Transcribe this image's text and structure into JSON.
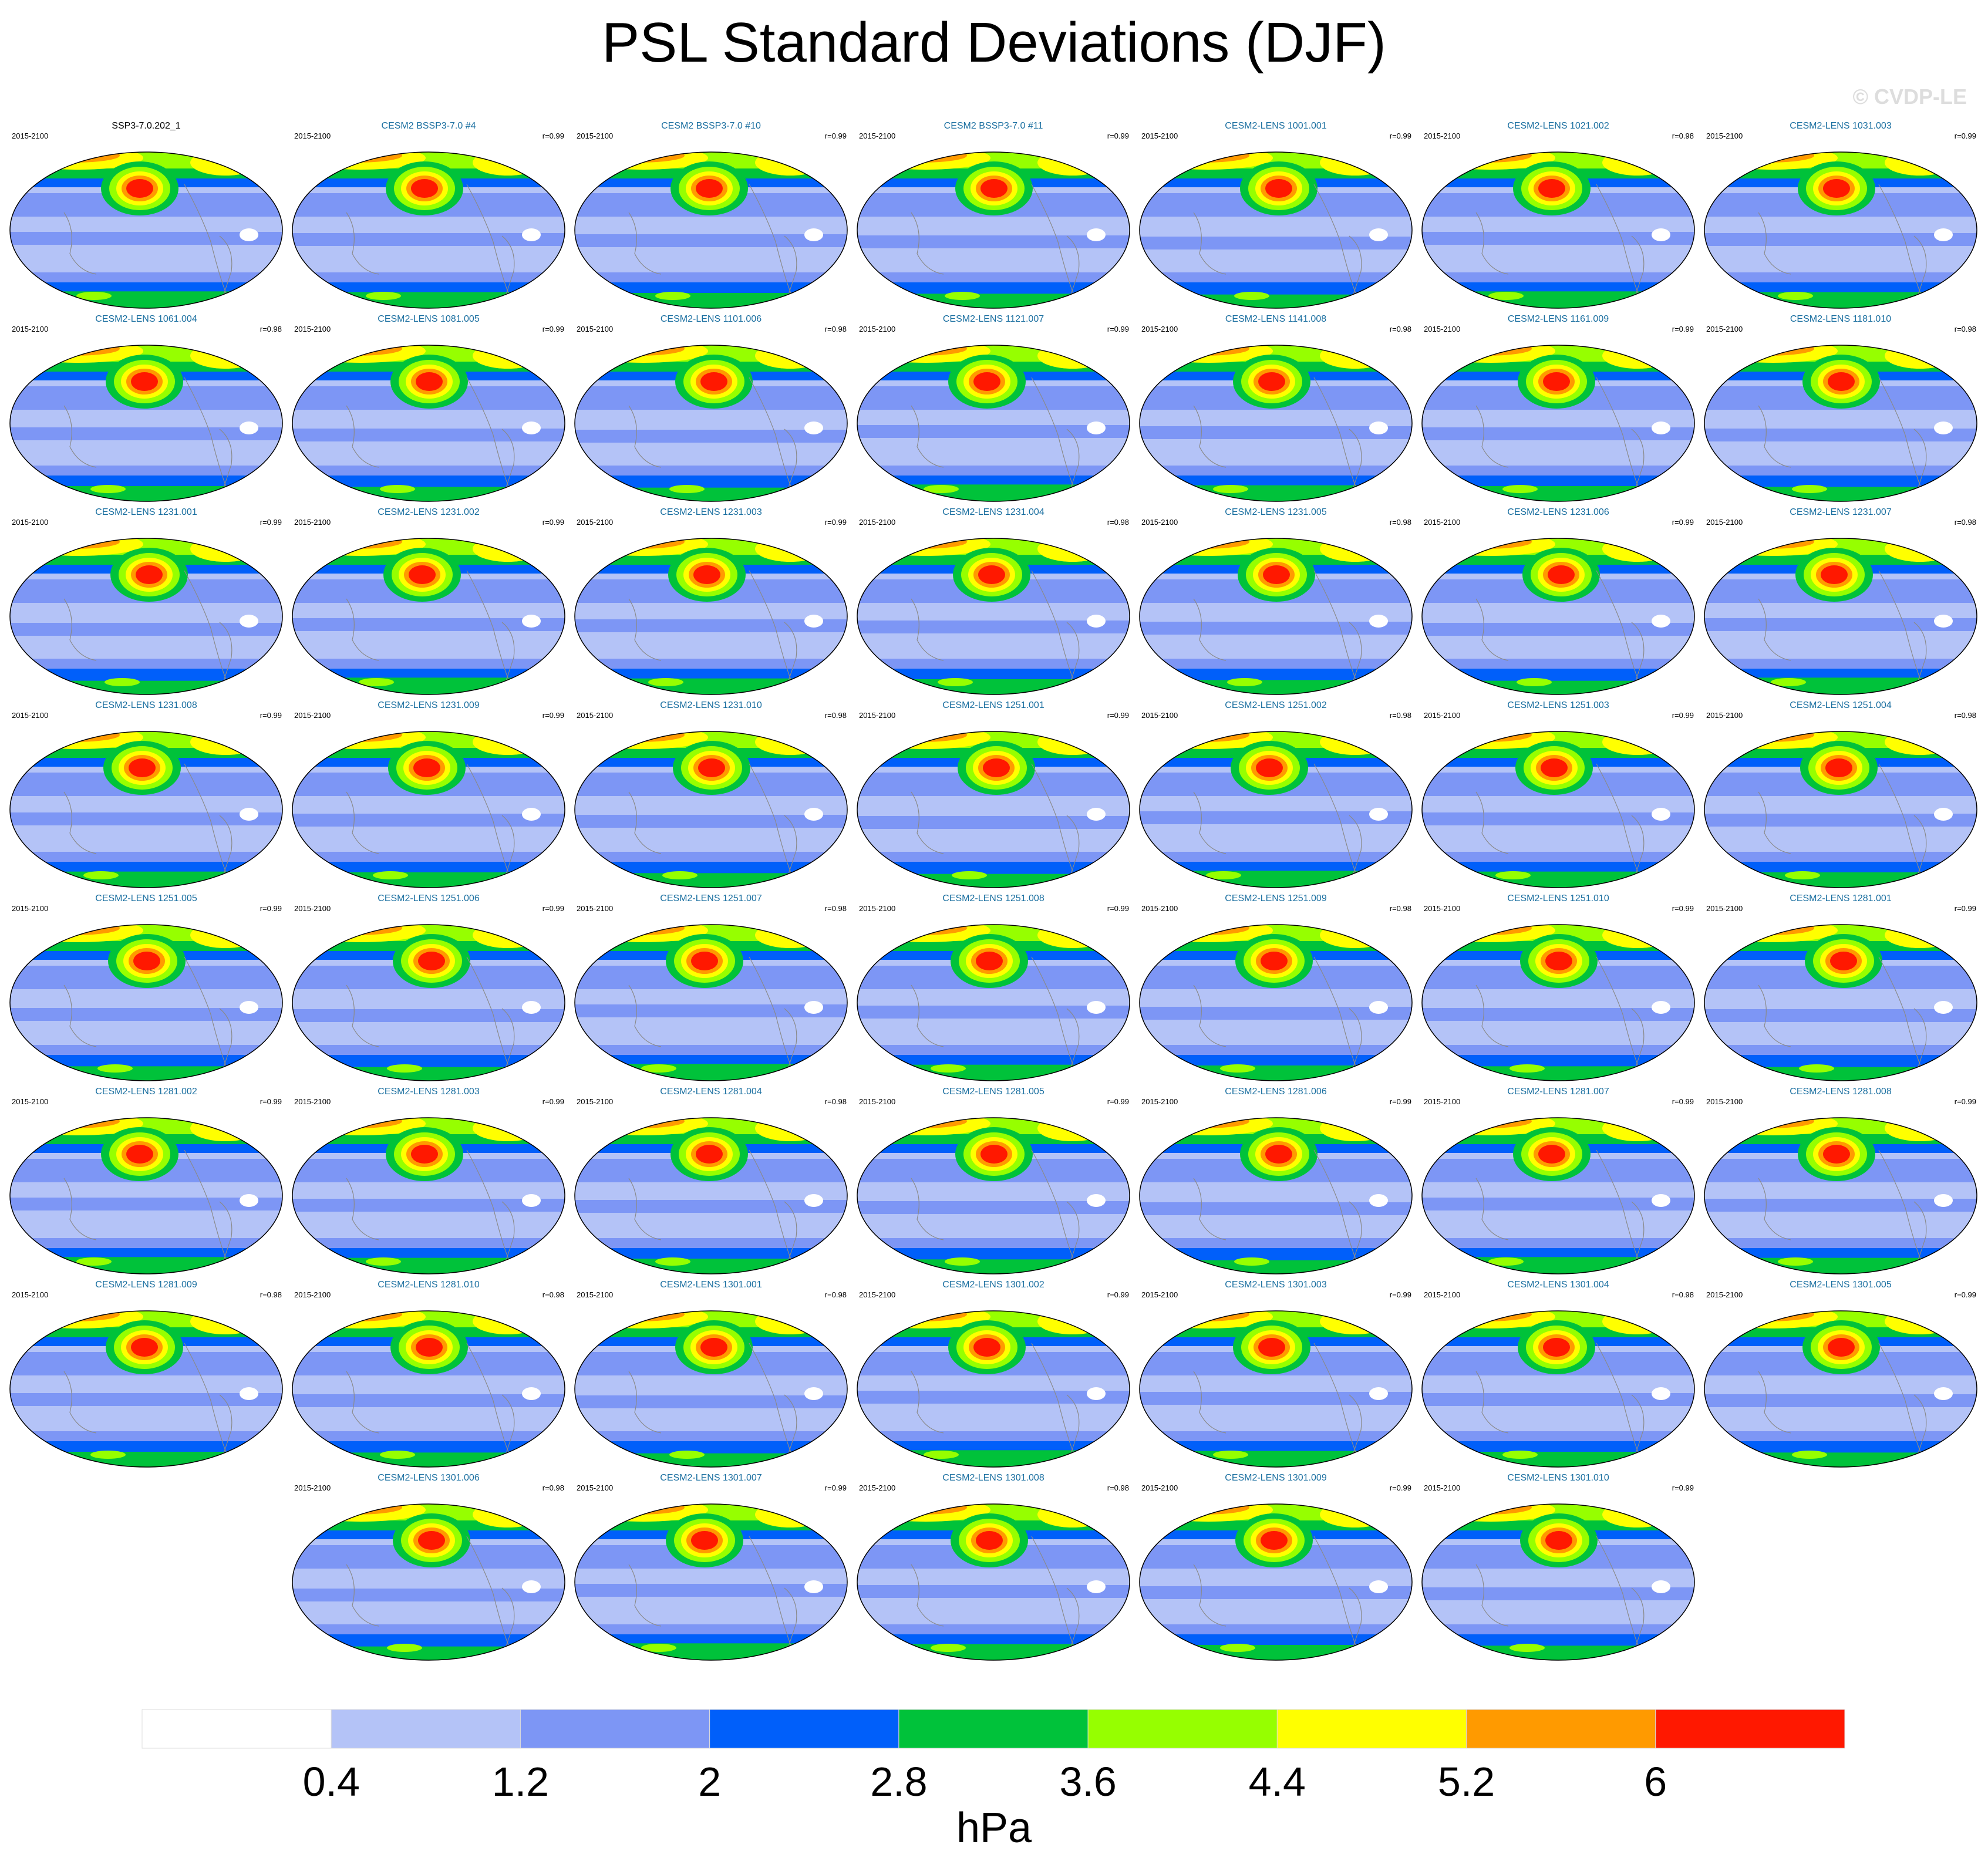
{
  "title": "PSL Standard Deviations (DJF)",
  "watermark": "© CVDP-LE",
  "panels": [
    {
      "title": "SSP3-7.0.202_1",
      "years": "2015-2100",
      "r": "",
      "obs": true
    },
    {
      "title": "CESM2 BSSP3-7.0 #4",
      "years": "2015-2100",
      "r": "r=0.99"
    },
    {
      "title": "CESM2 BSSP3-7.0 #10",
      "years": "2015-2100",
      "r": "r=0.99"
    },
    {
      "title": "CESM2 BSSP3-7.0 #11",
      "years": "2015-2100",
      "r": "r=0.99"
    },
    {
      "title": "CESM2-LENS 1001.001",
      "years": "2015-2100",
      "r": "r=0.99"
    },
    {
      "title": "CESM2-LENS 1021.002",
      "years": "2015-2100",
      "r": "r=0.98"
    },
    {
      "title": "CESM2-LENS 1031.003",
      "years": "2015-2100",
      "r": "r=0.99"
    },
    {
      "title": "CESM2-LENS 1061.004",
      "years": "2015-2100",
      "r": "r=0.98"
    },
    {
      "title": "CESM2-LENS 1081.005",
      "years": "2015-2100",
      "r": "r=0.99"
    },
    {
      "title": "CESM2-LENS 1101.006",
      "years": "2015-2100",
      "r": "r=0.98"
    },
    {
      "title": "CESM2-LENS 1121.007",
      "years": "2015-2100",
      "r": "r=0.99"
    },
    {
      "title": "CESM2-LENS 1141.008",
      "years": "2015-2100",
      "r": "r=0.98"
    },
    {
      "title": "CESM2-LENS 1161.009",
      "years": "2015-2100",
      "r": "r=0.99"
    },
    {
      "title": "CESM2-LENS 1181.010",
      "years": "2015-2100",
      "r": "r=0.98"
    },
    {
      "title": "CESM2-LENS 1231.001",
      "years": "2015-2100",
      "r": "r=0.99"
    },
    {
      "title": "CESM2-LENS 1231.002",
      "years": "2015-2100",
      "r": "r=0.99"
    },
    {
      "title": "CESM2-LENS 1231.003",
      "years": "2015-2100",
      "r": "r=0.99"
    },
    {
      "title": "CESM2-LENS 1231.004",
      "years": "2015-2100",
      "r": "r=0.98"
    },
    {
      "title": "CESM2-LENS 1231.005",
      "years": "2015-2100",
      "r": "r=0.98"
    },
    {
      "title": "CESM2-LENS 1231.006",
      "years": "2015-2100",
      "r": "r=0.99"
    },
    {
      "title": "CESM2-LENS 1231.007",
      "years": "2015-2100",
      "r": "r=0.98"
    },
    {
      "title": "CESM2-LENS 1231.008",
      "years": "2015-2100",
      "r": "r=0.99"
    },
    {
      "title": "CESM2-LENS 1231.009",
      "years": "2015-2100",
      "r": "r=0.99"
    },
    {
      "title": "CESM2-LENS 1231.010",
      "years": "2015-2100",
      "r": "r=0.98"
    },
    {
      "title": "CESM2-LENS 1251.001",
      "years": "2015-2100",
      "r": "r=0.99"
    },
    {
      "title": "CESM2-LENS 1251.002",
      "years": "2015-2100",
      "r": "r=0.98"
    },
    {
      "title": "CESM2-LENS 1251.003",
      "years": "2015-2100",
      "r": "r=0.99"
    },
    {
      "title": "CESM2-LENS 1251.004",
      "years": "2015-2100",
      "r": "r=0.98"
    },
    {
      "title": "CESM2-LENS 1251.005",
      "years": "2015-2100",
      "r": "r=0.99"
    },
    {
      "title": "CESM2-LENS 1251.006",
      "years": "2015-2100",
      "r": "r=0.99"
    },
    {
      "title": "CESM2-LENS 1251.007",
      "years": "2015-2100",
      "r": "r=0.98"
    },
    {
      "title": "CESM2-LENS 1251.008",
      "years": "2015-2100",
      "r": "r=0.99"
    },
    {
      "title": "CESM2-LENS 1251.009",
      "years": "2015-2100",
      "r": "r=0.98"
    },
    {
      "title": "CESM2-LENS 1251.010",
      "years": "2015-2100",
      "r": "r=0.99"
    },
    {
      "title": "CESM2-LENS 1281.001",
      "years": "2015-2100",
      "r": "r=0.99"
    },
    {
      "title": "CESM2-LENS 1281.002",
      "years": "2015-2100",
      "r": "r=0.99"
    },
    {
      "title": "CESM2-LENS 1281.003",
      "years": "2015-2100",
      "r": "r=0.99"
    },
    {
      "title": "CESM2-LENS 1281.004",
      "years": "2015-2100",
      "r": "r=0.98"
    },
    {
      "title": "CESM2-LENS 1281.005",
      "years": "2015-2100",
      "r": "r=0.99"
    },
    {
      "title": "CESM2-LENS 1281.006",
      "years": "2015-2100",
      "r": "r=0.99"
    },
    {
      "title": "CESM2-LENS 1281.007",
      "years": "2015-2100",
      "r": "r=0.99"
    },
    {
      "title": "CESM2-LENS 1281.008",
      "years": "2015-2100",
      "r": "r=0.99"
    },
    {
      "title": "CESM2-LENS 1281.009",
      "years": "2015-2100",
      "r": "r=0.98"
    },
    {
      "title": "CESM2-LENS 1281.010",
      "years": "2015-2100",
      "r": "r=0.98"
    },
    {
      "title": "CESM2-LENS 1301.001",
      "years": "2015-2100",
      "r": "r=0.98"
    },
    {
      "title": "CESM2-LENS 1301.002",
      "years": "2015-2100",
      "r": "r=0.99"
    },
    {
      "title": "CESM2-LENS 1301.003",
      "years": "2015-2100",
      "r": "r=0.99"
    },
    {
      "title": "CESM2-LENS 1301.004",
      "years": "2015-2100",
      "r": "r=0.98"
    },
    {
      "title": "CESM2-LENS 1301.005",
      "years": "2015-2100",
      "r": "r=0.99"
    },
    {
      "title": "CESM2-LENS 1301.006",
      "years": "2015-2100",
      "r": "r=0.98"
    },
    {
      "title": "CESM2-LENS 1301.007",
      "years": "2015-2100",
      "r": "r=0.99"
    },
    {
      "title": "CESM2-LENS 1301.008",
      "years": "2015-2100",
      "r": "r=0.98"
    },
    {
      "title": "CESM2-LENS 1301.009",
      "years": "2015-2100",
      "r": "r=0.99"
    },
    {
      "title": "CESM2-LENS 1301.010",
      "years": "2015-2100",
      "r": "r=0.99"
    }
  ],
  "colorbar": {
    "colors": [
      "#ffffff",
      "#b4c3f7",
      "#7d96f5",
      "#005ffa",
      "#00c23a",
      "#96ff00",
      "#ffff00",
      "#ff9a00",
      "#ff1800"
    ],
    "labels": [
      "0.4",
      "1.2",
      "2",
      "2.8",
      "3.6",
      "4.4",
      "5.2",
      "6"
    ],
    "units": "hPa"
  }
}
